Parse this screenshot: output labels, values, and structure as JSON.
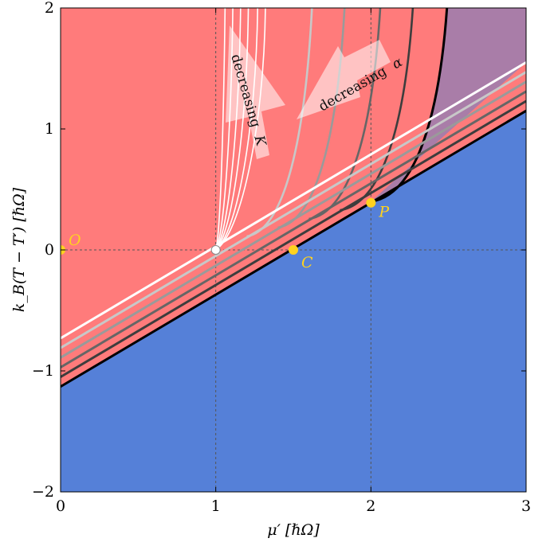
{
  "chart_data": {
    "type": "area",
    "xlabel": "μ′ [ℏΩ]",
    "ylabel": "k_B(T − T′) [ℏΩ]",
    "xlim": [
      0,
      3
    ],
    "ylim": [
      -2,
      2
    ],
    "x_ticks": [
      "0",
      "1",
      "2",
      "3"
    ],
    "y_ticks": [
      "2",
      "1",
      "0",
      "−1",
      "−2"
    ],
    "colors": {
      "upper_region": "#ff7b7b",
      "lower_region": "#5580d8",
      "overlap_region": "#a97da8",
      "points": "#ffd21f",
      "guide_lines": "#555555"
    },
    "regions": {
      "upper_region": "above the black boundary line y = 0.76x − 1.13",
      "lower_region": "below the black boundary line",
      "overlap_region": "between the black curve and the white line, x > 2"
    },
    "boundary_lines": {
      "slope": 0.76,
      "series": [
        {
          "intercept": -1.13,
          "color": "#000000"
        },
        {
          "intercept": -1.05,
          "color": "#3d3d3d"
        },
        {
          "intercept": -0.97,
          "color": "#666666"
        },
        {
          "intercept": -0.89,
          "color": "#9a9a9a"
        },
        {
          "intercept": -0.81,
          "color": "#c8c8c8"
        },
        {
          "intercept": -0.73,
          "color": "#ffffff"
        }
      ]
    },
    "curves_alpha": [
      {
        "x_end": 2.49,
        "color": "#000000"
      },
      {
        "x_end": 2.27,
        "color": "#3d3d3d"
      },
      {
        "x_end": 2.06,
        "color": "#666666"
      },
      {
        "x_end": 1.83,
        "color": "#9a9a9a"
      },
      {
        "x_end": 1.62,
        "color": "#c8c8c8"
      }
    ],
    "curves_K": {
      "start": [
        1.0,
        0.0
      ],
      "x_ends": [
        1.06,
        1.11,
        1.16,
        1.21,
        1.27,
        1.32
      ],
      "color": "#ffffff"
    },
    "guides": {
      "horizontal_y": 0,
      "vertical_x": [
        1,
        2
      ],
      "point_P_vertical": true
    },
    "points": [
      {
        "label": "O",
        "x": 0.0,
        "y": 0.0
      },
      {
        "label": "C",
        "x": 1.5,
        "y": 0.0
      },
      {
        "label": "P",
        "x": 2.0,
        "y": 0.39
      }
    ],
    "white_point": {
      "x": 1.0,
      "y": 0.0
    },
    "annotations": [
      {
        "text": "decreasing",
        "symbol": "K"
      },
      {
        "text": "decreasing",
        "symbol": "α"
      }
    ]
  }
}
